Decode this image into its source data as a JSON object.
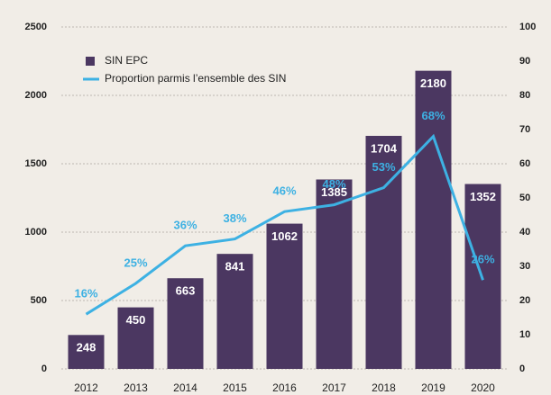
{
  "chart_data": {
    "type": "bar",
    "categories": [
      "2012",
      "2013",
      "2014",
      "2015",
      "2016",
      "2017",
      "2018",
      "2019",
      "2020"
    ],
    "series": [
      {
        "name": "SIN EPC",
        "type": "bar",
        "color": "#4b3761",
        "values": [
          248,
          450,
          663,
          841,
          1062,
          1385,
          1704,
          2180,
          1352
        ]
      },
      {
        "name": "Proportion parmis l’ensemble des SIN",
        "type": "line",
        "axis": "y2",
        "color": "#3db1e3",
        "values": [
          16,
          25,
          36,
          38,
          46,
          48,
          53,
          68,
          26
        ],
        "value_labels": [
          "16%",
          "25%",
          "36%",
          "38%",
          "46%",
          "48%",
          "53%",
          "68%",
          "26%"
        ]
      }
    ],
    "ylim": [
      0,
      2500
    ],
    "yticks": [
      0,
      500,
      1000,
      1500,
      2000,
      2500
    ],
    "y2lim": [
      0,
      100
    ],
    "y2ticks": [
      0,
      10,
      20,
      30,
      40,
      50,
      60,
      70,
      80,
      90,
      100
    ],
    "grid": true
  }
}
